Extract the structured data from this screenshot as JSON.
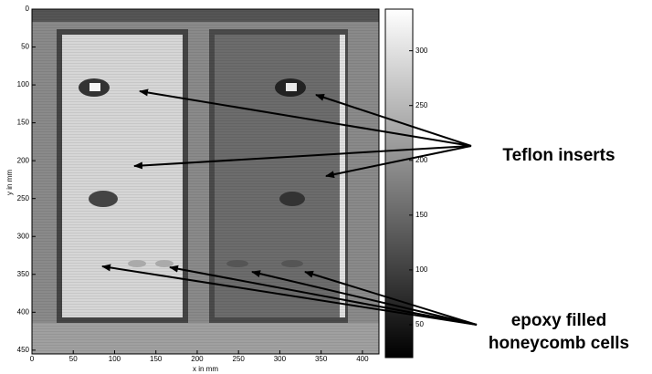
{
  "chart_data": {
    "type": "heatmap",
    "x_label": "x in mm",
    "y_label": "y in mm",
    "xlim": [
      0,
      420
    ],
    "xticks": [
      0,
      50,
      100,
      150,
      200,
      250,
      300,
      350,
      400
    ],
    "ylim": [
      0,
      455
    ],
    "yticks": [
      0,
      50,
      100,
      150,
      200,
      250,
      300,
      350,
      400,
      450
    ],
    "colorbar": {
      "clim": [
        20,
        338
      ],
      "ticks": [
        50,
        100,
        150,
        200,
        250,
        300
      ]
    },
    "annotations": [
      "Teflon inserts",
      "epoxy filled",
      "honeycomb cells"
    ]
  }
}
